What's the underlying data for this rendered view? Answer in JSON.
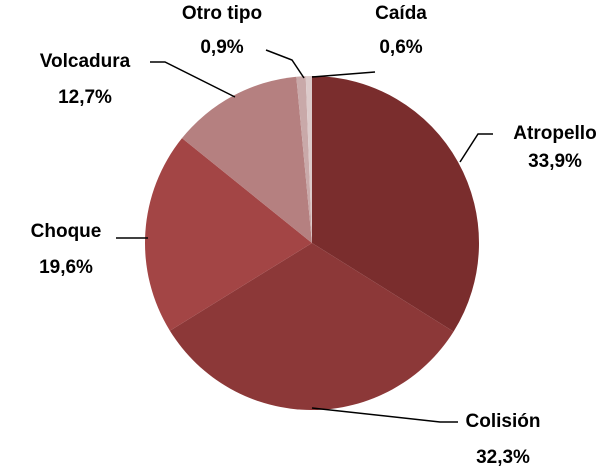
{
  "chart_data": {
    "type": "pie",
    "categories": [
      "Atropello",
      "Colisión",
      "Choque",
      "Volcadura",
      "Otro tipo",
      "Caída"
    ],
    "values": [
      33.9,
      32.3,
      19.6,
      12.7,
      0.9,
      0.6
    ],
    "value_labels": [
      "33,9%",
      "32,3%",
      "19,6%",
      "12,7%",
      "0,9%",
      "0,6%"
    ],
    "colors": [
      "#7a2d2d",
      "#8c3838",
      "#a34545",
      "#b58080",
      "#c9a9a9",
      "#dccaca"
    ]
  }
}
